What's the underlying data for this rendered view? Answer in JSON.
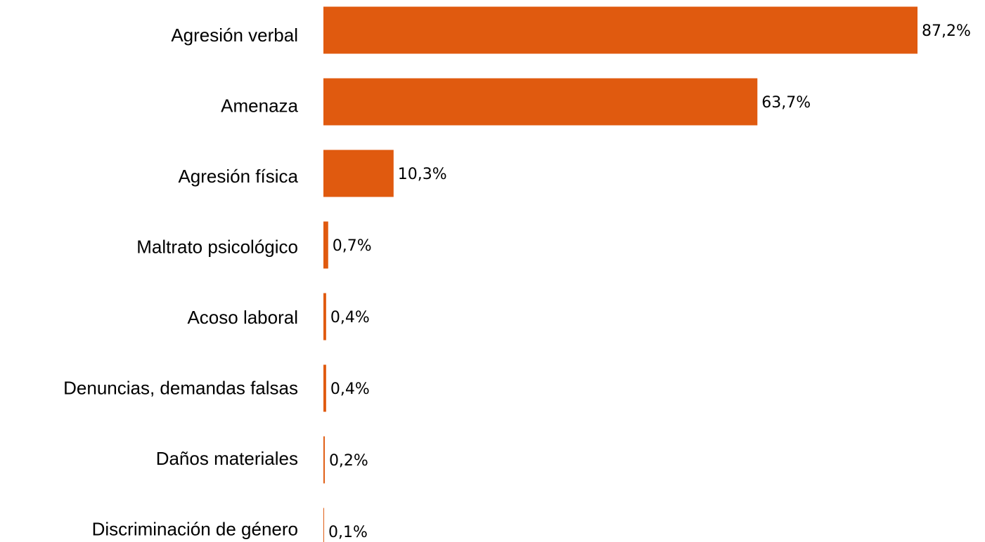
{
  "chart_data": {
    "type": "bar",
    "orientation": "horizontal",
    "categories": [
      "Agresión verbal",
      "Amenaza",
      "Agresión física",
      "Maltrato psicológico",
      "Acoso laboral",
      "Denuncias, demandas falsas",
      "Daños materiales",
      "Discriminación de género"
    ],
    "values": [
      87.2,
      63.7,
      10.3,
      0.7,
      0.4,
      0.4,
      0.2,
      0.1
    ],
    "value_labels": [
      "87,2%",
      "63,7%",
      "10,3%",
      "0,7%",
      "0,4%",
      "0,4%",
      "0,2%",
      "0,1%"
    ],
    "color": "#e05a0f"
  }
}
